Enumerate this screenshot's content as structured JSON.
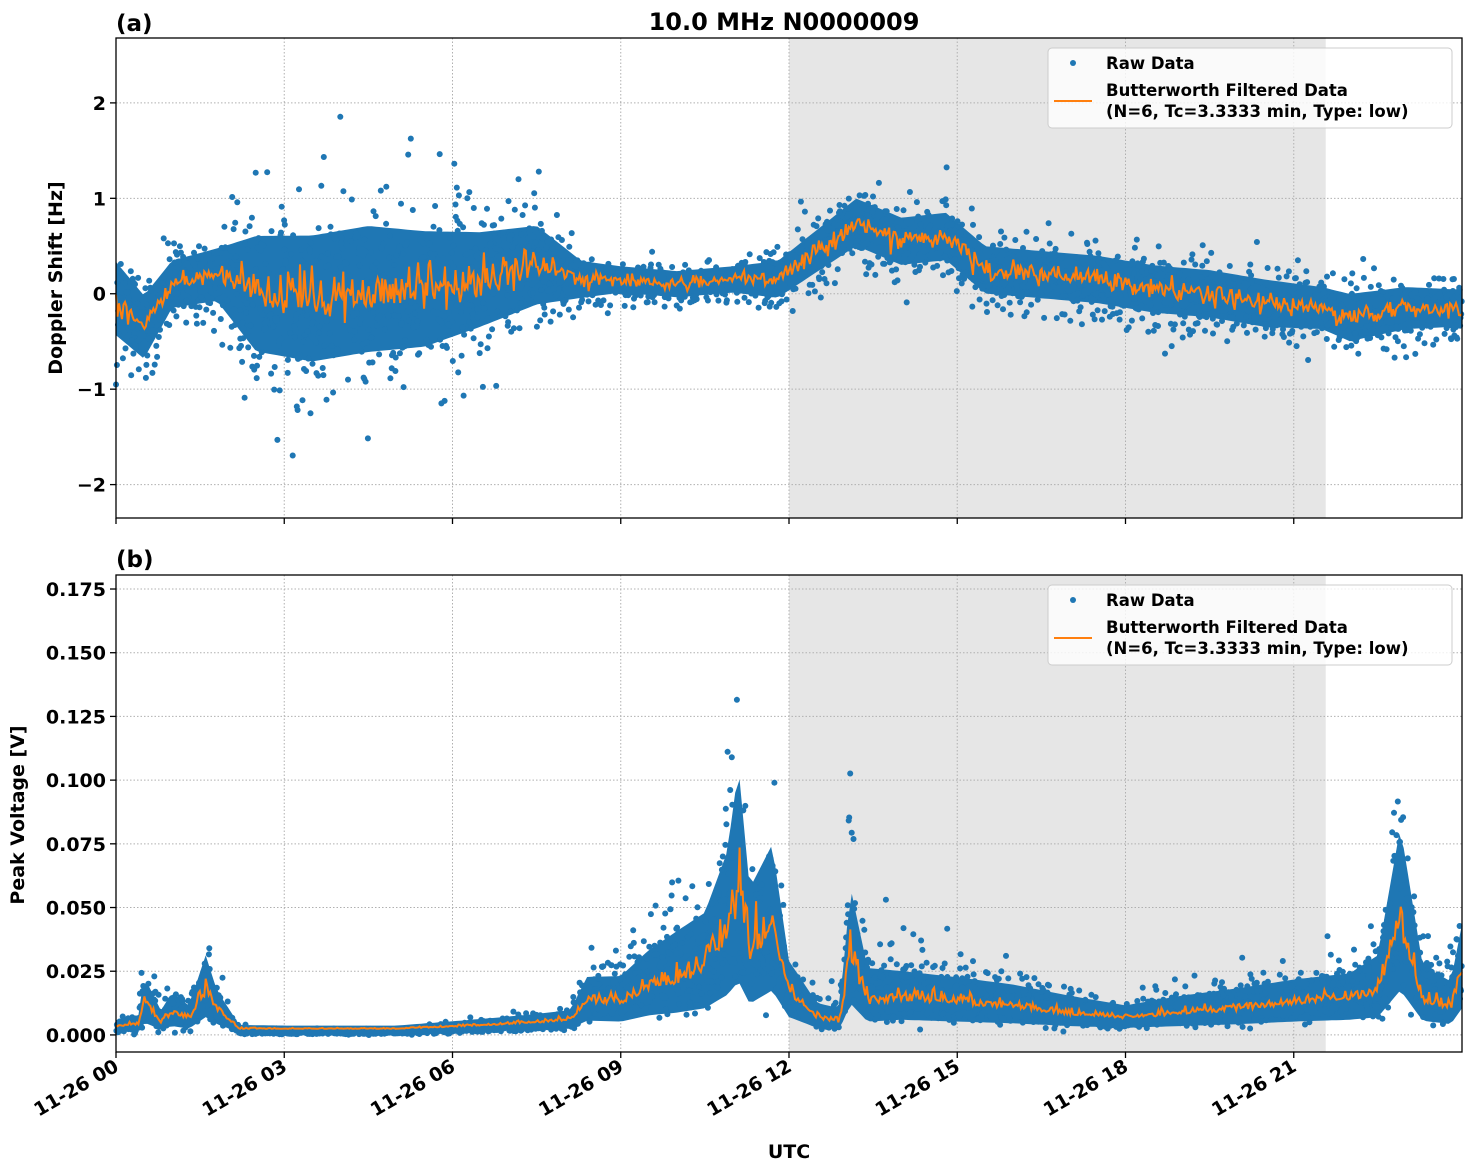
{
  "chart_data": [
    {
      "type": "scatter+line",
      "panel_label": "(a)",
      "title": "10.0 MHz N0000009",
      "xlabel": "",
      "ylabel": "Doppler Shift [Hz]",
      "ylim": [
        -2.35,
        2.68
      ],
      "yticks": [
        -2,
        -1,
        0,
        1,
        2
      ],
      "ytick_labels": [
        "−2",
        "−1",
        "0",
        "1",
        "2"
      ],
      "xlim_hours": [
        0,
        24
      ],
      "grid": true,
      "shaded_span_hours": [
        12.0,
        21.57
      ],
      "legend_position": "top-right",
      "series": [
        {
          "name": "Raw Data",
          "kind": "scatter",
          "color": "#1f77b4",
          "envelope_hours": [
            0,
            0.5,
            1,
            1.8,
            2.5,
            3.5,
            4.5,
            5.5,
            6.5,
            7.5,
            8.3,
            9,
            10,
            11,
            11.8,
            12.5,
            13.2,
            14,
            14.8,
            15.5,
            16.5,
            17.5,
            18.5,
            19.5,
            20.5,
            21.5,
            22,
            23,
            24
          ],
          "center": [
            -0.05,
            -0.35,
            0.1,
            0.2,
            0.0,
            -0.05,
            0.05,
            0.05,
            0.15,
            0.3,
            0.15,
            0.15,
            0.1,
            0.15,
            0.15,
            0.45,
            0.75,
            0.55,
            0.6,
            0.25,
            0.2,
            0.15,
            0.05,
            0.0,
            -0.1,
            -0.15,
            -0.25,
            -0.15,
            -0.15
          ],
          "spread": [
            0.7,
            0.6,
            0.45,
            0.5,
            1.1,
            1.2,
            1.2,
            1.1,
            0.9,
            0.75,
            0.35,
            0.25,
            0.25,
            0.25,
            0.35,
            0.4,
            0.45,
            0.45,
            0.45,
            0.45,
            0.45,
            0.45,
            0.45,
            0.45,
            0.45,
            0.4,
            0.45,
            0.4,
            0.35
          ]
        },
        {
          "name": "Butterworth Filtered Data\n(N=6, Tc=3.3333 min, Type: low)",
          "kind": "line",
          "color": "#ff7f0e"
        }
      ]
    },
    {
      "type": "scatter+line",
      "panel_label": "(b)",
      "xlabel": "UTC",
      "ylabel": "Peak Voltage [V]",
      "ylim": [
        -0.0067,
        0.1805
      ],
      "yticks": [
        0.0,
        0.025,
        0.05,
        0.075,
        0.1,
        0.125,
        0.15,
        0.175
      ],
      "ytick_labels": [
        "0.000",
        "0.025",
        "0.050",
        "0.075",
        "0.100",
        "0.125",
        "0.150",
        "0.175"
      ],
      "xticks_hours": [
        0,
        3,
        6,
        9,
        12,
        15,
        18,
        21
      ],
      "xtick_labels": [
        "11-26 00",
        "11-26 03",
        "11-26 06",
        "11-26 09",
        "11-26 12",
        "11-26 15",
        "11-26 18",
        "11-26 21"
      ],
      "xlim_hours": [
        0,
        24
      ],
      "grid": true,
      "shaded_span_hours": [
        12.0,
        21.57
      ],
      "legend_position": "top-right",
      "series": [
        {
          "name": "Raw Data",
          "kind": "scatter",
          "color": "#1f77b4",
          "envelope_hours": [
            0,
            0.4,
            0.5,
            0.8,
            1.0,
            1.3,
            1.6,
            1.8,
            2.2,
            3,
            4,
            5,
            6,
            6.8,
            7.5,
            8.1,
            8.4,
            9,
            9.5,
            10,
            10.5,
            10.9,
            11.1,
            11.3,
            11.7,
            12,
            12.5,
            12.9,
            13.1,
            13.4,
            14,
            15,
            16,
            17,
            18,
            19,
            20,
            21,
            22,
            22.5,
            22.9,
            23.3,
            23.8,
            24
          ],
          "center": [
            0.004,
            0.005,
            0.014,
            0.006,
            0.01,
            0.007,
            0.02,
            0.012,
            0.003,
            0.003,
            0.003,
            0.003,
            0.004,
            0.005,
            0.006,
            0.007,
            0.016,
            0.015,
            0.022,
            0.025,
            0.03,
            0.045,
            0.06,
            0.035,
            0.05,
            0.02,
            0.008,
            0.006,
            0.035,
            0.015,
            0.017,
            0.015,
            0.013,
            0.01,
            0.008,
            0.01,
            0.012,
            0.015,
            0.017,
            0.02,
            0.05,
            0.016,
            0.012,
            0.03
          ],
          "spread": [
            0.004,
            0.006,
            0.02,
            0.008,
            0.015,
            0.01,
            0.025,
            0.012,
            0.002,
            0.0015,
            0.0015,
            0.0015,
            0.003,
            0.004,
            0.005,
            0.006,
            0.015,
            0.018,
            0.025,
            0.035,
            0.04,
            0.06,
            0.1,
            0.05,
            0.055,
            0.02,
            0.01,
            0.01,
            0.05,
            0.025,
            0.018,
            0.017,
            0.015,
            0.012,
            0.008,
            0.012,
            0.014,
            0.015,
            0.016,
            0.025,
            0.07,
            0.025,
            0.02,
            0.03
          ]
        },
        {
          "name": "Butterworth Filtered Data\n(N=6, Tc=3.3333 min, Type: low)",
          "kind": "line",
          "color": "#ff7f0e"
        }
      ]
    }
  ],
  "legend": {
    "raw_label": "Raw Data",
    "filtered_line1": "Butterworth Filtered Data",
    "filtered_line2": "(N=6, Tc=3.3333 min, Type: low)"
  },
  "colors": {
    "raw": "#1f77b4",
    "filtered": "#ff7f0e",
    "shade": "#e6e6e6",
    "grid": "#b0b0b0"
  }
}
